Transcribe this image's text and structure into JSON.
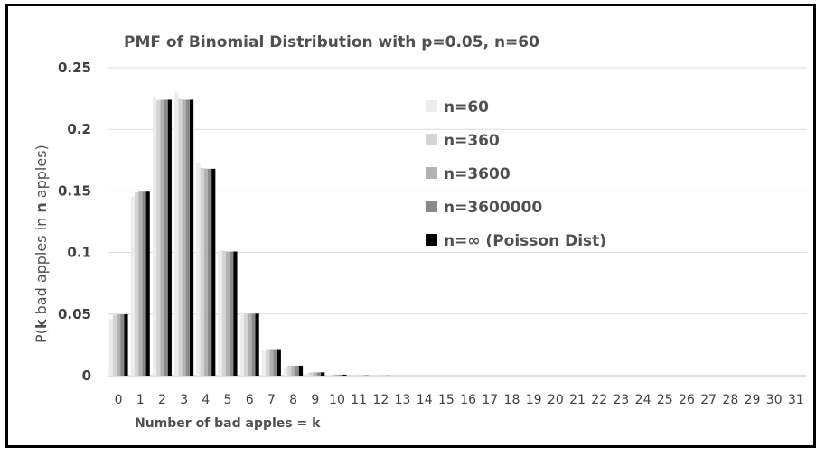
{
  "chart_data": {
    "type": "bar",
    "title": "PMF of Binomial Distribution with p=0.05, n=60",
    "xlabel": "Number of bad apples = k",
    "ylabel_parts": [
      "P(",
      "k",
      " bad apples in ",
      "n",
      " apples)"
    ],
    "ylim": [
      0,
      0.25
    ],
    "yticks": [
      "0",
      "0.05",
      "0.1",
      "0.15",
      "0.2",
      "0.25"
    ],
    "ytick_values": [
      0,
      0.05,
      0.1,
      0.15,
      0.2,
      0.25
    ],
    "grid": true,
    "legend_position": "right",
    "categories": [
      "0",
      "1",
      "2",
      "3",
      "4",
      "5",
      "6",
      "7",
      "8",
      "9",
      "10",
      "11",
      "12",
      "13",
      "14",
      "15",
      "16",
      "17",
      "18",
      "19",
      "20",
      "21",
      "22",
      "23",
      "24",
      "25",
      "26",
      "27",
      "28",
      "29",
      "30",
      "31"
    ],
    "series": [
      {
        "name": "n=60",
        "color": "#ececec",
        "values": [
          0.0461,
          0.1455,
          0.2259,
          0.2298,
          0.1724,
          0.1016,
          0.049,
          0.0199,
          0.0069,
          0.0021,
          0.0006,
          0.0001,
          0,
          0,
          0,
          0,
          0,
          0,
          0,
          0,
          0,
          0,
          0,
          0,
          0,
          0,
          0,
          0,
          0,
          0,
          0,
          0
        ]
      },
      {
        "name": "n=360",
        "color": "#d4d4d4",
        "values": [
          0.0494,
          0.1487,
          0.2238,
          0.2245,
          0.1686,
          0.1013,
          0.0506,
          0.0216,
          0.0081,
          0.0027,
          0.0008,
          0.0002,
          0.0001,
          0,
          0,
          0,
          0,
          0,
          0,
          0,
          0,
          0,
          0,
          0,
          0,
          0,
          0,
          0,
          0,
          0,
          0,
          0
        ]
      },
      {
        "name": "n=3600",
        "color": "#b2b2b2",
        "values": [
          0.0498,
          0.1494,
          0.224,
          0.224,
          0.1681,
          0.1008,
          0.0504,
          0.0216,
          0.0081,
          0.0027,
          0.0008,
          0.0002,
          0.0001,
          0,
          0,
          0,
          0,
          0,
          0,
          0,
          0,
          0,
          0,
          0,
          0,
          0,
          0,
          0,
          0,
          0,
          0,
          0
        ]
      },
      {
        "name": "n=3600000",
        "color": "#8a8a8a",
        "values": [
          0.0498,
          0.1494,
          0.224,
          0.224,
          0.168,
          0.1008,
          0.0504,
          0.0216,
          0.0081,
          0.0027,
          0.0008,
          0.0002,
          0.0001,
          0,
          0,
          0,
          0,
          0,
          0,
          0,
          0,
          0,
          0,
          0,
          0,
          0,
          0,
          0,
          0,
          0,
          0,
          0
        ]
      },
      {
        "name": "n=∞ (Poisson Dist)",
        "color": "#000000",
        "values": [
          0.0498,
          0.1494,
          0.224,
          0.224,
          0.168,
          0.1008,
          0.0504,
          0.0216,
          0.0081,
          0.0027,
          0.0008,
          0.0002,
          0.0001,
          0,
          0,
          0,
          0,
          0,
          0,
          0,
          0,
          0,
          0,
          0,
          0,
          0,
          0,
          0,
          0,
          0,
          0,
          0
        ]
      }
    ]
  }
}
